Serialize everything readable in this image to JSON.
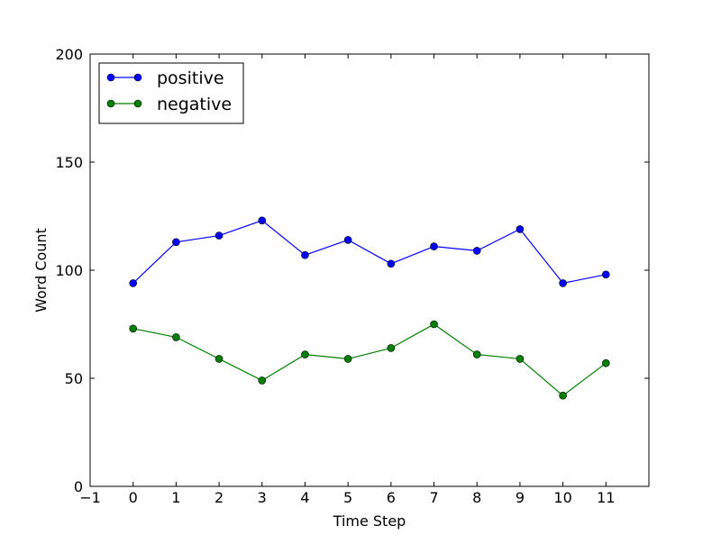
{
  "chart_data": {
    "type": "line",
    "title": "",
    "xlabel": "Time Step",
    "ylabel": "Word Count",
    "xlim": [
      -1,
      12
    ],
    "ylim": [
      0,
      200
    ],
    "xticks": [
      -1,
      0,
      1,
      2,
      3,
      4,
      5,
      6,
      7,
      8,
      9,
      10,
      11
    ],
    "yticks": [
      0,
      50,
      100,
      150,
      200
    ],
    "xtick_labels": [
      "−1",
      "0",
      "1",
      "2",
      "3",
      "4",
      "5",
      "6",
      "7",
      "8",
      "9",
      "10",
      "11"
    ],
    "ytick_labels": [
      "0",
      "50",
      "100",
      "150",
      "200"
    ],
    "grid": false,
    "legend_position": "top-left",
    "x": [
      0,
      1,
      2,
      3,
      4,
      5,
      6,
      7,
      8,
      9,
      10,
      11
    ],
    "series": [
      {
        "name": "positive",
        "color": "#0000ff",
        "values": [
          94,
          113,
          116,
          123,
          107,
          114,
          103,
          111,
          109,
          119,
          94,
          98
        ]
      },
      {
        "name": "negative",
        "color": "#008000",
        "values": [
          73,
          69,
          59,
          49,
          61,
          59,
          64,
          75,
          61,
          59,
          42,
          57
        ]
      }
    ]
  }
}
